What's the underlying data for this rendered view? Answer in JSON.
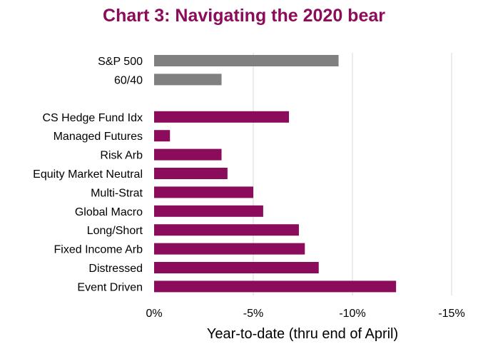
{
  "chart_data": {
    "type": "bar",
    "orientation": "horizontal",
    "title": "Chart 3: Navigating the 2020 bear",
    "xlabel": "Year-to-date (thru end of April)",
    "ylabel": "",
    "xlim": [
      0,
      -15
    ],
    "xticks": [
      0,
      -5,
      -10,
      -15
    ],
    "xtick_labels": [
      "0%",
      "-5%",
      "-10%",
      "-15%"
    ],
    "grid": true,
    "legend": "none",
    "groups": [
      {
        "name": "benchmarks",
        "color": "#808080",
        "bars": [
          {
            "label": "S&P 500",
            "value": -9.3
          },
          {
            "label": "60/40",
            "value": -3.4
          }
        ]
      },
      {
        "name": "hedge-fund-strategies",
        "color": "#8B0C5A",
        "bars": [
          {
            "label": "CS Hedge Fund Idx",
            "value": -6.8
          },
          {
            "label": "Managed Futures",
            "value": -0.8
          },
          {
            "label": "Risk Arb",
            "value": -3.4
          },
          {
            "label": "Equity Market Neutral",
            "value": -3.7
          },
          {
            "label": "Multi-Strat",
            "value": -5.0
          },
          {
            "label": "Global Macro",
            "value": -5.5
          },
          {
            "label": "Long/Short",
            "value": -7.3
          },
          {
            "label": "Fixed Income Arb",
            "value": -7.6
          },
          {
            "label": "Distressed",
            "value": -8.3
          },
          {
            "label": "Event Driven",
            "value": -12.2
          }
        ]
      }
    ],
    "colors": {
      "title": "#8B0C5A",
      "gridline": "#D9D9D9",
      "text": "#000000"
    }
  }
}
